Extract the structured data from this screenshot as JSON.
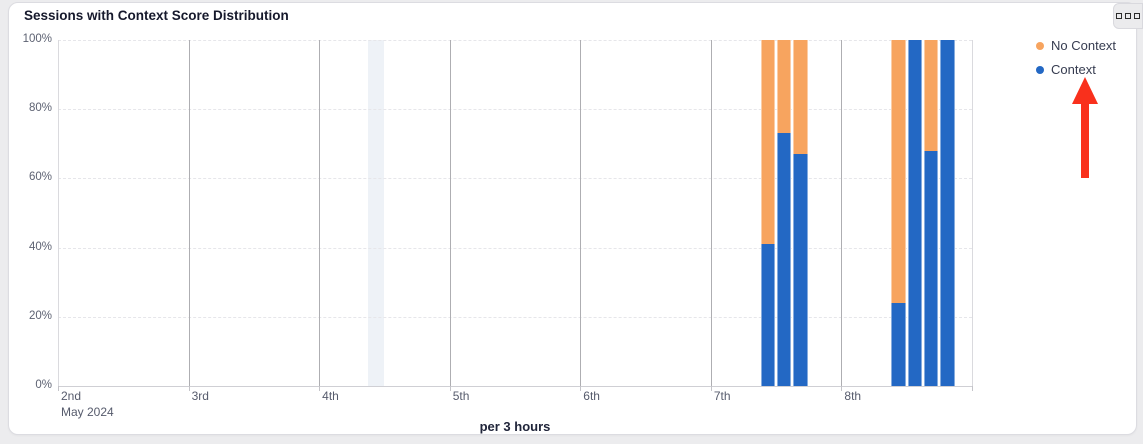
{
  "card": {
    "title": "Sessions with Context Score Distribution",
    "menu_button_icon": "more-options"
  },
  "chart_data": {
    "type": "bar",
    "variant": "stacked-percent-column",
    "title": "Sessions with Context Score Distribution",
    "xlabel": "per 3 hours",
    "x_axis_start_sublabel": "May 2024",
    "x_ticks": [
      "2nd",
      "3rd",
      "4th",
      "5th",
      "6th",
      "7th",
      "8th"
    ],
    "y_ticks": [
      "100%",
      "80%",
      "60%",
      "40%",
      "20%",
      "0%"
    ],
    "ylim": [
      0,
      100
    ],
    "slots_per_day": 8,
    "grid": {
      "horizontal": "dashed",
      "vertical": "solid"
    },
    "legend_position": "top-right",
    "legend": [
      {
        "label": "No Context",
        "color": "#f7a45f"
      },
      {
        "label": "Context",
        "color": "#2368c4"
      }
    ],
    "bars": [
      {
        "day": "7th",
        "slot": 3,
        "context_pct": 41,
        "no_context_pct": 59
      },
      {
        "day": "7th",
        "slot": 4,
        "context_pct": 73,
        "no_context_pct": 27
      },
      {
        "day": "7th",
        "slot": 5,
        "context_pct": 67,
        "no_context_pct": 33
      },
      {
        "day": "8th",
        "slot": 3,
        "context_pct": 24,
        "no_context_pct": 76
      },
      {
        "day": "8th",
        "slot": 4,
        "context_pct": 100,
        "no_context_pct": 0
      },
      {
        "day": "8th",
        "slot": 5,
        "context_pct": 68,
        "no_context_pct": 32
      },
      {
        "day": "8th",
        "slot": 6,
        "context_pct": 100,
        "no_context_pct": 0
      }
    ],
    "highlight_band": {
      "day": "4th",
      "slot": 3
    }
  },
  "annotation": {
    "arrow": {
      "shape": "arrow-up",
      "color": "#f9301c",
      "points_to": "Context"
    }
  }
}
